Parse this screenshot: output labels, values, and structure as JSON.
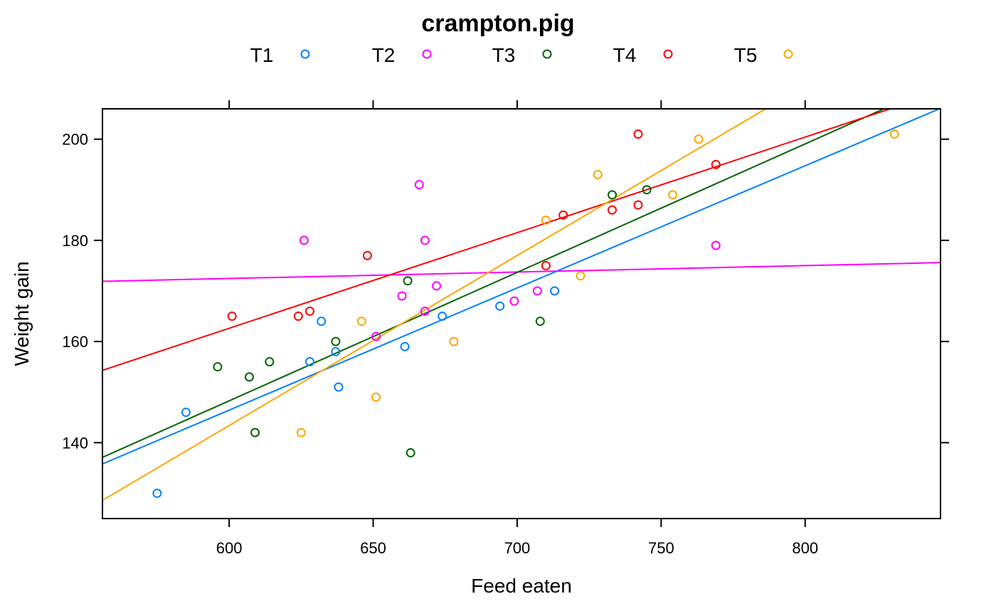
{
  "chart_data": {
    "type": "scatter",
    "title": "crampton.pig",
    "xlabel": "Feed eaten",
    "ylabel": "Weight gain",
    "xlim": [
      556,
      847
    ],
    "ylim": [
      125,
      206
    ],
    "x_ticks": [
      600,
      650,
      700,
      750,
      800
    ],
    "y_ticks": [
      140,
      160,
      180,
      200
    ],
    "legend_position": "top",
    "grid": false,
    "series": [
      {
        "name": "T1",
        "color": "#0080ff",
        "points": [
          [
            575,
            130
          ],
          [
            585,
            146
          ],
          [
            628,
            156
          ],
          [
            632,
            164
          ],
          [
            637,
            158
          ],
          [
            638,
            151
          ],
          [
            661,
            159
          ],
          [
            674,
            165
          ],
          [
            694,
            167
          ],
          [
            713,
            170
          ]
        ],
        "fit": [
          [
            556,
            135.8
          ],
          [
            847,
            206.1
          ]
        ]
      },
      {
        "name": "T2",
        "color": "#ff00ff",
        "points": [
          [
            626,
            180
          ],
          [
            651,
            161
          ],
          [
            660,
            169
          ],
          [
            666,
            191
          ],
          [
            668,
            180
          ],
          [
            668,
            166
          ],
          [
            672,
            171
          ],
          [
            699,
            168
          ],
          [
            707,
            170
          ],
          [
            769,
            179
          ]
        ],
        "fit": [
          [
            556,
            171.9
          ],
          [
            847,
            175.6
          ]
        ]
      },
      {
        "name": "T3",
        "color": "#006400",
        "points": [
          [
            596,
            155
          ],
          [
            607,
            153
          ],
          [
            609,
            142
          ],
          [
            614,
            156
          ],
          [
            637,
            160
          ],
          [
            662,
            172
          ],
          [
            663,
            138
          ],
          [
            708,
            164
          ],
          [
            733,
            189
          ],
          [
            745,
            190
          ]
        ],
        "fit": [
          [
            556,
            137.1
          ],
          [
            847,
            211.0
          ]
        ]
      },
      {
        "name": "T4",
        "color": "#ff0000",
        "points": [
          [
            601,
            165
          ],
          [
            624,
            165
          ],
          [
            628,
            166
          ],
          [
            648,
            177
          ],
          [
            710,
            175
          ],
          [
            716,
            185
          ],
          [
            733,
            186
          ],
          [
            742,
            201
          ],
          [
            742,
            187
          ],
          [
            769,
            195
          ]
        ],
        "fit": [
          [
            556,
            154.3
          ],
          [
            847,
            209.3
          ]
        ]
      },
      {
        "name": "T5",
        "color": "#ffa500",
        "points": [
          [
            625,
            142
          ],
          [
            646,
            164
          ],
          [
            651,
            149
          ],
          [
            678,
            160
          ],
          [
            710,
            184
          ],
          [
            722,
            173
          ],
          [
            728,
            193
          ],
          [
            754,
            189
          ],
          [
            763,
            200
          ],
          [
            831,
            201
          ]
        ],
        "fit": [
          [
            556,
            128.6
          ],
          [
            847,
            226.4
          ]
        ]
      }
    ]
  }
}
